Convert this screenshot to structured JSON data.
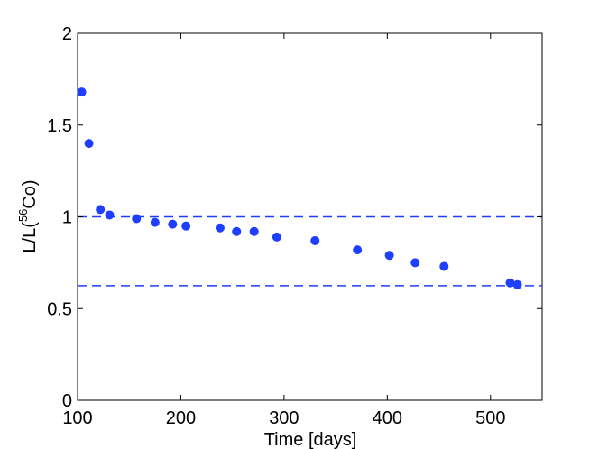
{
  "chart_data": {
    "type": "scatter",
    "title": "",
    "xlabel": "Time [days]",
    "ylabel": {
      "prefix": "L/L(",
      "superscript": "56",
      "suffix": "Co)"
    },
    "xlim": [
      100,
      550
    ],
    "ylim": [
      0,
      2
    ],
    "xticks": [
      100,
      200,
      300,
      400,
      500
    ],
    "yticks": [
      0,
      0.5,
      1,
      1.5,
      2
    ],
    "xtick_labels": [
      "100",
      "200",
      "300",
      "400",
      "500"
    ],
    "ytick_labels": [
      "0",
      "0.5",
      "1",
      "1.5",
      "2"
    ],
    "grid": false,
    "marker_color": "#1f3fff",
    "reference_lines": [
      {
        "y": 1.0,
        "style": "dashed",
        "color": "#1f3fff"
      },
      {
        "y": 0.625,
        "style": "dashed",
        "color": "#1f3fff"
      }
    ],
    "series": [
      {
        "points": [
          [
            104,
            1.68
          ],
          [
            111,
            1.4
          ],
          [
            122,
            1.04
          ],
          [
            131,
            1.01
          ],
          [
            157,
            0.99
          ],
          [
            175,
            0.97
          ],
          [
            192,
            0.96
          ],
          [
            205,
            0.95
          ],
          [
            238,
            0.94
          ],
          [
            254,
            0.92
          ],
          [
            271,
            0.92
          ],
          [
            293,
            0.89
          ],
          [
            330,
            0.87
          ],
          [
            371,
            0.82
          ],
          [
            402,
            0.79
          ],
          [
            427,
            0.75
          ],
          [
            455,
            0.73
          ],
          [
            519,
            0.64
          ],
          [
            526,
            0.63
          ]
        ]
      }
    ]
  }
}
